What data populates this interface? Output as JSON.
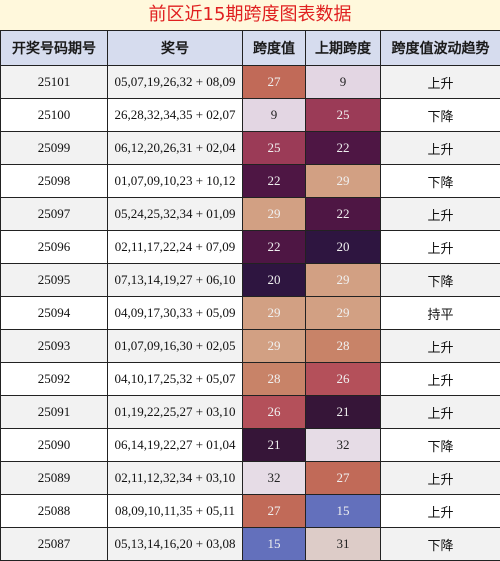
{
  "title": "前区近15期跨度图表数据",
  "headers": [
    "开奖号码期号",
    "奖号",
    "跨度值",
    "上期跨度",
    "跨度值波动趋势"
  ],
  "rows": [
    {
      "period": "25101",
      "numbers": "05,07,19,26,32 + 08,09",
      "span": "27",
      "prev_span": "9",
      "trend": "上升"
    },
    {
      "period": "25100",
      "numbers": "26,28,32,34,35 + 02,07",
      "span": "9",
      "prev_span": "25",
      "trend": "下降"
    },
    {
      "period": "25099",
      "numbers": "06,12,20,26,31 + 02,04",
      "span": "25",
      "prev_span": "22",
      "trend": "上升"
    },
    {
      "period": "25098",
      "numbers": "01,07,09,10,23 + 10,12",
      "span": "22",
      "prev_span": "29",
      "trend": "下降"
    },
    {
      "period": "25097",
      "numbers": "05,24,25,32,34 + 01,09",
      "span": "29",
      "prev_span": "22",
      "trend": "上升"
    },
    {
      "period": "25096",
      "numbers": "02,11,17,22,24 + 07,09",
      "span": "22",
      "prev_span": "20",
      "trend": "上升"
    },
    {
      "period": "25095",
      "numbers": "07,13,14,19,27 + 06,10",
      "span": "20",
      "prev_span": "29",
      "trend": "下降"
    },
    {
      "period": "25094",
      "numbers": "04,09,17,30,33 + 05,09",
      "span": "29",
      "prev_span": "29",
      "trend": "持平"
    },
    {
      "period": "25093",
      "numbers": "01,07,09,16,30 + 02,05",
      "span": "29",
      "prev_span": "28",
      "trend": "上升"
    },
    {
      "period": "25092",
      "numbers": "04,10,17,25,32 + 05,07",
      "span": "28",
      "prev_span": "26",
      "trend": "上升"
    },
    {
      "period": "25091",
      "numbers": "01,19,22,25,27 + 03,10",
      "span": "26",
      "prev_span": "21",
      "trend": "上升"
    },
    {
      "period": "25090",
      "numbers": "06,14,19,22,27 + 01,04",
      "span": "21",
      "prev_span": "32",
      "trend": "下降"
    },
    {
      "period": "25089",
      "numbers": "02,11,12,32,34 + 03,10",
      "span": "32",
      "prev_span": "27",
      "trend": "上升"
    },
    {
      "period": "25088",
      "numbers": "08,09,10,11,35 + 05,11",
      "span": "27",
      "prev_span": "15",
      "trend": "上升"
    },
    {
      "period": "25087",
      "numbers": "05,13,14,16,20 + 03,08",
      "span": "15",
      "prev_span": "31",
      "trend": "下降"
    }
  ],
  "heat_colors": {
    "9": "#e3d6e3",
    "15": "#6370bc",
    "20": "#2e1540",
    "21": "#361538",
    "22": "#4e1644",
    "25": "#9b3b57",
    "26": "#b4505a",
    "27": "#c16a58",
    "28": "#c88368",
    "29": "#d2a083",
    "31": "#ddccc8",
    "32": "#e6dce6"
  },
  "heat_text_light": [
    "15",
    "20",
    "21",
    "22",
    "25",
    "26",
    "27",
    "28",
    "29"
  ]
}
